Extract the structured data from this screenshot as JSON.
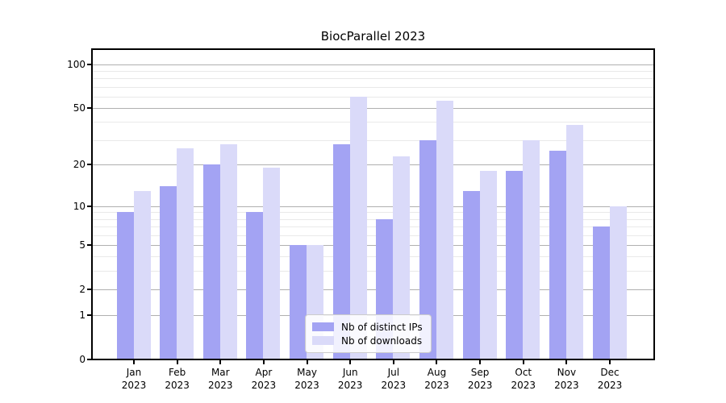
{
  "chart_data": {
    "type": "bar",
    "title": "BiocParallel 2023",
    "categories": [
      "Jan",
      "Feb",
      "Mar",
      "Apr",
      "May",
      "Jun",
      "Jul",
      "Aug",
      "Sep",
      "Oct",
      "Nov",
      "Dec"
    ],
    "year_label": "2023",
    "series": [
      {
        "name": "Nb of distinct IPs",
        "color": "#a3a3f3",
        "values": [
          9,
          14,
          20,
          9,
          5,
          28,
          8,
          30,
          13,
          18,
          25,
          7
        ]
      },
      {
        "name": "Nb of downloads",
        "color": "#dadaf9",
        "values": [
          13,
          26,
          28,
          19,
          5,
          60,
          23,
          56,
          18,
          30,
          38,
          10
        ]
      }
    ],
    "y_scale": "log1p",
    "y_ticks": [
      0,
      1,
      2,
      5,
      10,
      20,
      50,
      100
    ],
    "y_minor_ticks": [
      3,
      4,
      6,
      7,
      8,
      9,
      30,
      40,
      60,
      70,
      80,
      90
    ],
    "y_max": 127,
    "grid": true,
    "legend_position": "inside-bottom-center"
  },
  "colors": {
    "bar_distinct_ips": "#a3a3f3",
    "bar_downloads": "#dadaf9",
    "grid_major": "#b0b0b0",
    "grid_minor": "#e9e9e9",
    "axis": "#000000",
    "background": "#ffffff"
  }
}
